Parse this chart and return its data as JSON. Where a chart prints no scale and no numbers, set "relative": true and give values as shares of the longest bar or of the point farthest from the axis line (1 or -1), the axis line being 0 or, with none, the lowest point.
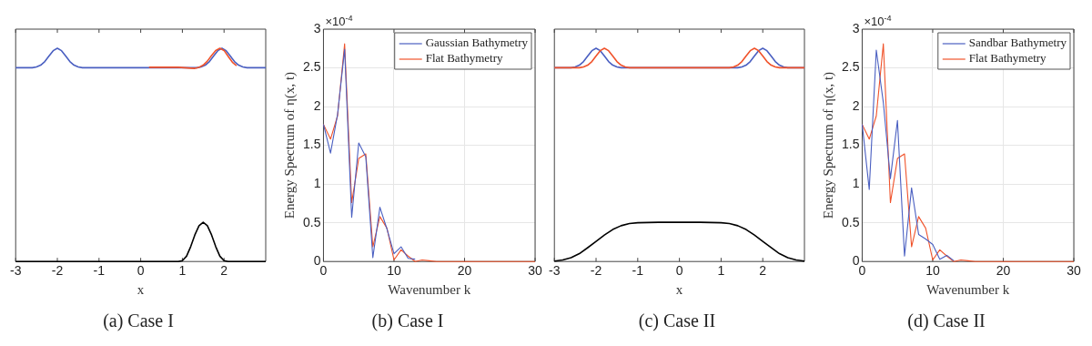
{
  "chart_data": [
    {
      "type": "line",
      "title": "(a) Case I",
      "xlabel": "x",
      "relative": true,
      "tick_labels": "x",
      "xlim": [
        -3,
        3
      ],
      "xticks": [
        -3,
        -2,
        -1,
        0,
        1,
        2
      ],
      "series": [
        {
          "color": "#f0522a",
          "x": [
            0.2,
            0.6,
            0.9,
            1.2,
            1.3,
            1.4,
            1.5,
            1.6,
            1.7,
            1.8,
            1.9,
            2,
            2.1,
            2.2,
            2.3
          ],
          "values": [
            0.911,
            0.912,
            0.911,
            0.907,
            0.906,
            0.911,
            0.921,
            0.94,
            0.966,
            0.99,
            1,
            0.99,
            0.962,
            0.935,
            0.918
          ]
        },
        {
          "color": "#4a5fc1",
          "x": [
            -3,
            -2.6,
            -2.5,
            -2.4,
            -2.3,
            -2.2,
            -2.1,
            -2,
            -1.9,
            -1.8,
            -1.7,
            -1.6,
            -1.5,
            -1.4,
            1.35,
            1.45,
            1.55,
            1.65,
            1.75,
            1.85,
            1.95,
            2.05,
            2.15,
            2.25,
            2.35,
            2.45,
            2.55,
            3
          ],
          "values": [
            0.909,
            0.909,
            0.913,
            0.921,
            0.938,
            0.964,
            0.989,
            1,
            0.989,
            0.964,
            0.938,
            0.921,
            0.913,
            0.909,
            0.909,
            0.913,
            0.921,
            0.938,
            0.964,
            0.989,
            1,
            0.989,
            0.964,
            0.938,
            0.921,
            0.913,
            0.909,
            0.909
          ]
        },
        {
          "color": "#000000",
          "x": [
            -3,
            0.9,
            1.0,
            1.1,
            1.2,
            1.3,
            1.4,
            1.5,
            1.6,
            1.7,
            1.8,
            1.9,
            2.0,
            2.1,
            3
          ],
          "values": [
            0,
            0,
            0.004,
            0.025,
            0.07,
            0.125,
            0.168,
            0.184,
            0.168,
            0.125,
            0.07,
            0.025,
            0.004,
            0,
            0
          ]
        }
      ]
    },
    {
      "type": "line",
      "title": "(b) Case I",
      "xlabel": "Wavenumber k",
      "ylabel": "Energy Spectrum of η(x, t)",
      "annotations": [
        "×10$^{-4}$"
      ],
      "xlim": [
        0,
        30
      ],
      "xticks": [
        0,
        10,
        20,
        30
      ],
      "ylim": [
        0,
        3
      ],
      "yticks": [
        0,
        0.5,
        1,
        1.5,
        2,
        2.5,
        3
      ],
      "grid": true,
      "legend": "top right",
      "x": [
        0,
        1,
        2,
        3,
        4,
        5,
        6,
        7,
        8,
        9,
        10,
        11,
        12,
        13,
        14,
        15,
        16,
        17,
        18,
        19,
        20,
        21,
        22,
        23,
        24,
        25,
        26,
        27,
        28,
        29,
        30
      ],
      "series": [
        {
          "name": "Gaussian Bathymetry",
          "color": "#4a5fc1",
          "values": [
            1.77,
            1.4,
            1.9,
            2.74,
            0.57,
            1.53,
            1.35,
            0.05,
            0.7,
            0.42,
            0.1,
            0.19,
            0.04,
            0.03,
            null,
            null,
            null,
            null,
            null,
            null,
            null,
            null,
            null,
            null,
            null,
            null,
            null,
            null,
            null,
            null,
            null
          ]
        },
        {
          "name": "Flat Bathymetry",
          "color": "#f0522a",
          "values": [
            1.77,
            1.58,
            1.88,
            2.81,
            0.76,
            1.33,
            1.39,
            0.19,
            0.58,
            0.43,
            0.02,
            0.15,
            0.07,
            0,
            0.02,
            0.01,
            0,
            0,
            0,
            0,
            0,
            0,
            0,
            0,
            0,
            0,
            0,
            0,
            0,
            0,
            0
          ]
        }
      ]
    },
    {
      "type": "line",
      "title": "(c) Case II",
      "xlabel": "x",
      "relative": true,
      "tick_labels": "x",
      "xlim": [
        -3,
        3
      ],
      "xticks": [
        -3,
        -2,
        -1,
        0,
        1,
        2
      ],
      "series": [
        {
          "color": "#f0522a",
          "x": [
            -3,
            -2.4,
            -2.3,
            -2.2,
            -2.1,
            -2,
            -1.9,
            -1.8,
            -1.7,
            -1.6,
            -1.5,
            -1.4,
            -1.3,
            -1.2,
            1.2,
            1.3,
            1.4,
            1.5,
            1.6,
            1.7,
            1.8,
            1.9,
            2,
            2.1,
            2.2,
            2.3,
            2.4,
            3
          ],
          "values": [
            0.909,
            0.909,
            0.913,
            0.921,
            0.938,
            0.964,
            0.989,
            1,
            0.989,
            0.964,
            0.938,
            0.921,
            0.913,
            0.909,
            0.909,
            0.913,
            0.921,
            0.938,
            0.964,
            0.989,
            1,
            0.989,
            0.964,
            0.938,
            0.921,
            0.913,
            0.909,
            0.909
          ]
        },
        {
          "color": "#4a5fc1",
          "x": [
            -3,
            -2.6,
            -2.5,
            -2.4,
            -2.3,
            -2.2,
            -2.1,
            -2,
            -1.9,
            -1.8,
            -1.7,
            -1.6,
            -1.5,
            -1.4,
            1.4,
            1.5,
            1.6,
            1.7,
            1.8,
            1.9,
            2,
            2.1,
            2.2,
            2.3,
            2.4,
            2.5,
            2.6,
            3
          ],
          "values": [
            0.909,
            0.909,
            0.913,
            0.921,
            0.938,
            0.964,
            0.989,
            1,
            0.989,
            0.964,
            0.938,
            0.921,
            0.913,
            0.909,
            0.909,
            0.913,
            0.921,
            0.938,
            0.964,
            0.989,
            1,
            0.989,
            0.964,
            0.938,
            0.921,
            0.913,
            0.909,
            0.909
          ]
        },
        {
          "color": "#000000",
          "x": [
            -3,
            -2.8,
            -2.6,
            -2.4,
            -2.2,
            -2,
            -1.8,
            -1.6,
            -1.4,
            -1.2,
            -1,
            -0.5,
            0,
            0.5,
            1,
            1.2,
            1.4,
            1.6,
            1.8,
            2,
            2.2,
            2.4,
            2.6,
            2.8,
            3
          ],
          "values": [
            0.002,
            0.007,
            0.018,
            0.037,
            0.065,
            0.094,
            0.124,
            0.15,
            0.168,
            0.178,
            0.182,
            0.184,
            0.184,
            0.184,
            0.182,
            0.178,
            0.168,
            0.15,
            0.124,
            0.094,
            0.065,
            0.037,
            0.018,
            0.007,
            0.002
          ]
        }
      ]
    },
    {
      "type": "line",
      "title": "(d) Case II",
      "xlabel": "Wavenumber k",
      "ylabel": "Energy Spectrum of η(x, t)",
      "annotations": [
        "×10$^{-4}$"
      ],
      "xlim": [
        0,
        30
      ],
      "xticks": [
        0,
        10,
        20,
        30
      ],
      "ylim": [
        0,
        3
      ],
      "yticks": [
        0,
        0.5,
        1,
        1.5,
        2,
        2.5,
        3
      ],
      "grid": true,
      "legend": "top right",
      "x": [
        0,
        1,
        2,
        3,
        4,
        5,
        6,
        7,
        8,
        9,
        10,
        11,
        12,
        13,
        14,
        15,
        16,
        17,
        18,
        19,
        20,
        21,
        22,
        23,
        24,
        25,
        26,
        27,
        28,
        29,
        30
      ],
      "series": [
        {
          "name": "Sandbar Bathymetry",
          "color": "#4a5fc1",
          "values": [
            1.77,
            0.93,
            2.73,
            2.05,
            1.07,
            1.82,
            0.07,
            0.95,
            0.35,
            0.29,
            0.22,
            0.03,
            0.08,
            0.01,
            null,
            null,
            null,
            null,
            null,
            null,
            null,
            null,
            null,
            null,
            null,
            null,
            null,
            null,
            null,
            null,
            null
          ]
        },
        {
          "name": "Flat Bathymetry",
          "color": "#f0522a",
          "values": [
            1.77,
            1.58,
            1.88,
            2.81,
            0.76,
            1.33,
            1.39,
            0.19,
            0.58,
            0.43,
            0.02,
            0.15,
            0.07,
            0,
            0.02,
            0.01,
            0,
            0,
            0,
            0,
            0,
            0,
            0,
            0,
            0,
            0,
            0,
            0,
            0,
            0,
            0
          ]
        }
      ]
    }
  ]
}
